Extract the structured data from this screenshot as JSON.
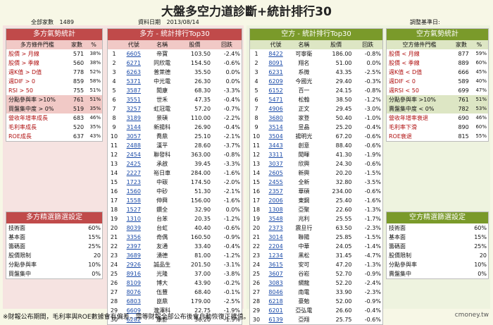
{
  "title": "大盤多空力道診斷+統計排行30",
  "header_info": {
    "total_label": "全部家數",
    "total_value": "1489",
    "date_label": "資料日期",
    "date_value": "2013/08/14",
    "adjust_label": "調整基準日:"
  },
  "left_stats": {
    "title": "多方氣勢統計",
    "col_headers": [
      "多方條件門檻",
      "家數",
      "%"
    ],
    "rows": [
      {
        "label": "股價 > 月線",
        "count": "571",
        "pct": "38%",
        "hl": false
      },
      {
        "label": "股價 > 季線",
        "count": "560",
        "pct": "38%",
        "hl": false
      },
      {
        "label": "週K值 > D值",
        "count": "778",
        "pct": "52%",
        "hl": false
      },
      {
        "label": "週DIF > 0",
        "count": "859",
        "pct": "58%",
        "hl": false
      },
      {
        "label": "RSI > 50",
        "count": "755",
        "pct": "51%",
        "hl": false
      },
      {
        "label": "分點參與率 >10%",
        "count": "761",
        "pct": "51%",
        "hl": true
      },
      {
        "label": "買盤集中度 > 0%",
        "count": "519",
        "pct": "35%",
        "hl": true
      },
      {
        "label": "營收年增率成長",
        "count": "683",
        "pct": "46%",
        "hl": false
      },
      {
        "label": "毛利率成長",
        "count": "520",
        "pct": "35%",
        "hl": false
      },
      {
        "label": "ROE成長",
        "count": "637",
        "pct": "43%",
        "hl": false
      }
    ]
  },
  "left_filter": {
    "title": "多方精選篩選設定",
    "rows": [
      {
        "label": "技術面",
        "value": "60%"
      },
      {
        "label": "基本面",
        "value": "15%"
      },
      {
        "label": "籌碼面",
        "value": "25%"
      },
      {
        "label": "股價限制",
        "value": "20"
      },
      {
        "label": "分點參與率",
        "value": "10%"
      },
      {
        "label": "買盤集中",
        "value": "0%"
      }
    ]
  },
  "bull_top": {
    "title": "多方 - 統計排行Top30",
    "col_headers": [
      "",
      "代號",
      "名稱",
      "股價",
      "回跌"
    ],
    "rows": [
      {
        "rank": "1",
        "code": "6605",
        "name": "帝寶",
        "price": "103.50",
        "chg": "-2.4%"
      },
      {
        "rank": "2",
        "code": "6271",
        "name": "同欣電",
        "price": "154.50",
        "chg": "-0.6%"
      },
      {
        "rank": "3",
        "code": "6263",
        "name": "普萊德",
        "price": "35.50",
        "chg": "0.0%"
      },
      {
        "rank": "4",
        "code": "5371",
        "name": "中光電",
        "price": "26.30",
        "chg": "0.0%"
      },
      {
        "rank": "5",
        "code": "3587",
        "name": "閎康",
        "price": "68.30",
        "chg": "-3.3%"
      },
      {
        "rank": "6",
        "code": "3551",
        "name": "世禾",
        "price": "47.35",
        "chg": "-0.4%"
      },
      {
        "rank": "7",
        "code": "3257",
        "name": "虹冠電",
        "price": "57.20",
        "chg": "-0.7%"
      },
      {
        "rank": "8",
        "code": "3189",
        "name": "景碩",
        "price": "110.00",
        "chg": "-2.2%"
      },
      {
        "rank": "9",
        "code": "3144",
        "name": "新揚科",
        "price": "26.90",
        "chg": "-0.4%"
      },
      {
        "rank": "10",
        "code": "3057",
        "name": "喬鼎",
        "price": "25.10",
        "chg": "-2.1%"
      },
      {
        "rank": "11",
        "code": "2488",
        "name": "漢平",
        "price": "28.60",
        "chg": "-3.7%"
      },
      {
        "rank": "12",
        "code": "2454",
        "name": "聯發科",
        "price": "363.00",
        "chg": "-0.8%"
      },
      {
        "rank": "13",
        "code": "2425",
        "name": "承啟",
        "price": "39.45",
        "chg": "-3.3%"
      },
      {
        "rank": "14",
        "code": "2227",
        "name": "裕日車",
        "price": "284.00",
        "chg": "-1.6%"
      },
      {
        "rank": "15",
        "code": "1723",
        "name": "中碳",
        "price": "174.50",
        "chg": "-2.0%"
      },
      {
        "rank": "16",
        "code": "1560",
        "name": "中砂",
        "price": "51.30",
        "chg": "-2.1%"
      },
      {
        "rank": "17",
        "code": "1558",
        "name": "伸興",
        "price": "156.00",
        "chg": "-1.6%"
      },
      {
        "rank": "18",
        "code": "1527",
        "name": "鑽全",
        "price": "32.90",
        "chg": "0.0%"
      },
      {
        "rank": "19",
        "code": "1310",
        "name": "台苯",
        "price": "20.35",
        "chg": "-1.2%"
      },
      {
        "rank": "20",
        "code": "8039",
        "name": "台虹",
        "price": "40.40",
        "chg": "-0.6%"
      },
      {
        "rank": "21",
        "code": "3356",
        "name": "奇偶",
        "price": "160.50",
        "chg": "-0.9%"
      },
      {
        "rank": "22",
        "code": "2397",
        "name": "友通",
        "price": "33.40",
        "chg": "-0.4%"
      },
      {
        "rank": "23",
        "code": "3689",
        "name": "湧德",
        "price": "81.00",
        "chg": "-1.2%"
      },
      {
        "rank": "24",
        "code": "2926",
        "name": "誠品生",
        "price": "201.50",
        "chg": "-3.1%"
      },
      {
        "rank": "25",
        "code": "8916",
        "name": "光隆",
        "price": "37.00",
        "chg": "-3.8%"
      },
      {
        "rank": "26",
        "code": "8109",
        "name": "博大",
        "price": "43.90",
        "chg": "-0.2%"
      },
      {
        "rank": "27",
        "code": "8076",
        "name": "伍豐",
        "price": "68.40",
        "chg": "-0.1%"
      },
      {
        "rank": "28",
        "code": "6803",
        "name": "崑鼎",
        "price": "179.00",
        "chg": "-2.5%"
      },
      {
        "rank": "29",
        "code": "6609",
        "name": "瀧澤科",
        "price": "22.75",
        "chg": "-1.9%"
      },
      {
        "rank": "30",
        "code": "6282",
        "name": "康舒",
        "price": "36.20",
        "chg": "-1.9%"
      }
    ]
  },
  "bear_top": {
    "title": "空方 - 統計排行Top30",
    "col_headers": [
      "",
      "代號",
      "名稱",
      "股價",
      "回跌"
    ],
    "rows": [
      {
        "rank": "1",
        "code": "8422",
        "name": "可寧衛",
        "price": "186.00",
        "chg": "-0.8%"
      },
      {
        "rank": "2",
        "code": "8091",
        "name": "翔名",
        "price": "51.00",
        "chg": "0.0%"
      },
      {
        "rank": "3",
        "code": "6231",
        "name": "系微",
        "price": "43.35",
        "chg": "-2.5%"
      },
      {
        "rank": "4",
        "code": "6209",
        "name": "今國光",
        "price": "29.40",
        "chg": "-0.3%"
      },
      {
        "rank": "5",
        "code": "6152",
        "name": "百一",
        "price": "24.15",
        "chg": "-0.8%"
      },
      {
        "rank": "6",
        "code": "5471",
        "name": "松翰",
        "price": "38.50",
        "chg": "-1.2%"
      },
      {
        "rank": "7",
        "code": "4906",
        "name": "正文",
        "price": "29.45",
        "chg": "-3.0%"
      },
      {
        "rank": "8",
        "code": "3680",
        "name": "家登",
        "price": "50.40",
        "chg": "-1.0%"
      },
      {
        "rank": "9",
        "code": "3514",
        "name": "昱晶",
        "price": "25.20",
        "chg": "-0.4%"
      },
      {
        "rank": "10",
        "code": "3504",
        "name": "揚明光",
        "price": "67.20",
        "chg": "-0.6%"
      },
      {
        "rank": "11",
        "code": "3443",
        "name": "創意",
        "price": "88.40",
        "chg": "-0.6%"
      },
      {
        "rank": "12",
        "code": "3311",
        "name": "閎暉",
        "price": "41.30",
        "chg": "-1.9%"
      },
      {
        "rank": "13",
        "code": "3037",
        "name": "欣興",
        "price": "24.30",
        "chg": "-0.6%"
      },
      {
        "rank": "14",
        "code": "2605",
        "name": "新興",
        "price": "20.20",
        "chg": "-1.5%"
      },
      {
        "rank": "15",
        "code": "2455",
        "name": "全新",
        "price": "32.80",
        "chg": "-3.5%"
      },
      {
        "rank": "16",
        "code": "2357",
        "name": "華碩",
        "price": "234.00",
        "chg": "-0.6%"
      },
      {
        "rank": "17",
        "code": "2006",
        "name": "東鋼",
        "price": "25.40",
        "chg": "-1.6%"
      },
      {
        "rank": "18",
        "code": "1308",
        "name": "亞聚",
        "price": "22.60",
        "chg": "-1.3%"
      },
      {
        "rank": "19",
        "code": "3548",
        "name": "兆利",
        "price": "25.55",
        "chg": "-1.7%"
      },
      {
        "rank": "20",
        "code": "2373",
        "name": "震旦行",
        "price": "63.50",
        "chg": "-2.3%"
      },
      {
        "rank": "21",
        "code": "3014",
        "name": "聯陽",
        "price": "25.85",
        "chg": "-1.5%"
      },
      {
        "rank": "22",
        "code": "2204",
        "name": "中華",
        "price": "24.05",
        "chg": "-1.4%"
      },
      {
        "rank": "23",
        "code": "1234",
        "name": "黑松",
        "price": "31.45",
        "chg": "-4.7%"
      },
      {
        "rank": "24",
        "code": "3615",
        "name": "安可",
        "price": "47.20",
        "chg": "-1.3%"
      },
      {
        "rank": "25",
        "code": "3607",
        "name": "谷崧",
        "price": "52.70",
        "chg": "-0.9%"
      },
      {
        "rank": "26",
        "code": "3083",
        "name": "網龍",
        "price": "52.20",
        "chg": "-2.4%"
      },
      {
        "rank": "27",
        "code": "8046",
        "name": "南電",
        "price": "33.90",
        "chg": "-2.3%"
      },
      {
        "rank": "28",
        "code": "6218",
        "name": "豪勉",
        "price": "52.00",
        "chg": "-0.9%"
      },
      {
        "rank": "29",
        "code": "6201",
        "name": "亞弘電",
        "price": "26.60",
        "chg": "-0.4%"
      },
      {
        "rank": "30",
        "code": "6139",
        "name": "亞翔",
        "price": "25.75",
        "chg": "-0.6%"
      }
    ]
  },
  "right_stats": {
    "title": "空方氣勢統計",
    "col_headers": [
      "空方條件門檻",
      "家數",
      "%"
    ],
    "rows": [
      {
        "label": "股價 < 月線",
        "count": "877",
        "pct": "59%",
        "hl": false
      },
      {
        "label": "股價 < 季線",
        "count": "889",
        "pct": "60%",
        "hl": false
      },
      {
        "label": "週K值 < D值",
        "count": "666",
        "pct": "45%",
        "hl": false
      },
      {
        "label": "週DIF < 0",
        "count": "589",
        "pct": "40%",
        "hl": false
      },
      {
        "label": "週RSI < 50",
        "count": "699",
        "pct": "47%",
        "hl": false
      },
      {
        "label": "分點參與率 >10%",
        "count": "761",
        "pct": "51%",
        "hl": true
      },
      {
        "label": "賣盤集中度 < 0%",
        "count": "782",
        "pct": "53%",
        "hl": true
      },
      {
        "label": "營收年增率衰退",
        "count": "690",
        "pct": "46%",
        "hl": false
      },
      {
        "label": "毛利率下滑",
        "count": "890",
        "pct": "60%",
        "hl": false
      },
      {
        "label": "ROE衰退",
        "count": "815",
        "pct": "55%",
        "hl": false
      }
    ]
  },
  "right_filter": {
    "title": "空方精選篩選設定",
    "rows": [
      {
        "label": "技術面",
        "value": "60%"
      },
      {
        "label": "基本面",
        "value": "15%"
      },
      {
        "label": "籌碼面",
        "value": "25%"
      },
      {
        "label": "股價限制",
        "value": "20"
      },
      {
        "label": "分點參與率",
        "value": "10%"
      },
      {
        "label": "賣盤集中",
        "value": "0%"
      }
    ]
  },
  "footnote": "※財報公布期間，毛利率與ROE數據會有偏差，需等財報全部公布後會自動恢復正確值。",
  "brand": "cmoney.tw"
}
